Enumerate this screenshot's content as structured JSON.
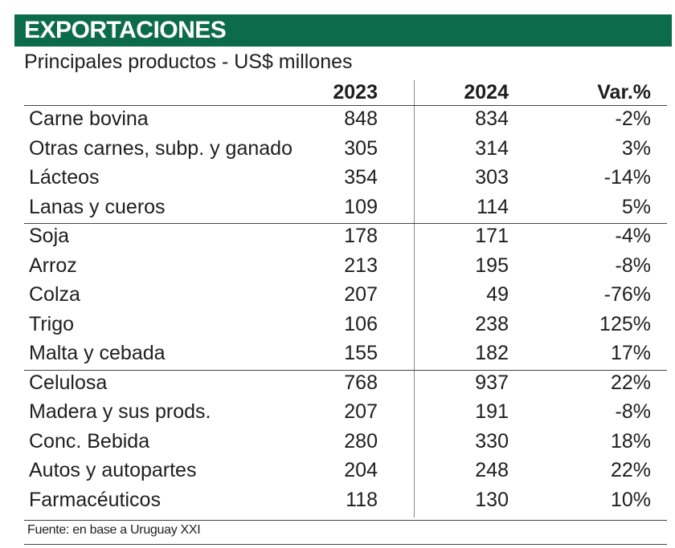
{
  "header": {
    "title": "EXPORTACIONES",
    "subtitle": "Principales productos - US$ millones"
  },
  "table": {
    "columns": [
      "2023",
      "2024",
      "Var.%"
    ],
    "groups": [
      {
        "rows": [
          [
            "Carne bovina",
            "848",
            "834",
            "-2%"
          ],
          [
            "Otras carnes, subp. y ganado",
            "305",
            "314",
            "3%"
          ],
          [
            "Lácteos",
            "354",
            "303",
            "-14%"
          ],
          [
            "Lanas y cueros",
            "109",
            "114",
            "5%"
          ]
        ]
      },
      {
        "rows": [
          [
            "Soja",
            "178",
            "171",
            "-4%"
          ],
          [
            "Arroz",
            "213",
            "195",
            "-8%"
          ],
          [
            "Colza",
            "207",
            "49",
            "-76%"
          ],
          [
            "Trigo",
            "106",
            "238",
            "125%"
          ],
          [
            "Malta y cebada",
            "155",
            "182",
            "17%"
          ]
        ]
      },
      {
        "rows": [
          [
            "Celulosa",
            "768",
            "937",
            "22%"
          ],
          [
            "Madera y sus prods.",
            "207",
            "191",
            "-8%"
          ],
          [
            "Conc. Bebida",
            "280",
            "330",
            "18%"
          ],
          [
            "Autos y autopartes",
            "204",
            "248",
            "22%"
          ],
          [
            "Farmacéuticos",
            "118",
            "130",
            "10%"
          ]
        ]
      }
    ]
  },
  "footer": {
    "source": "Fuente: en base a Uruguay XXI"
  }
}
